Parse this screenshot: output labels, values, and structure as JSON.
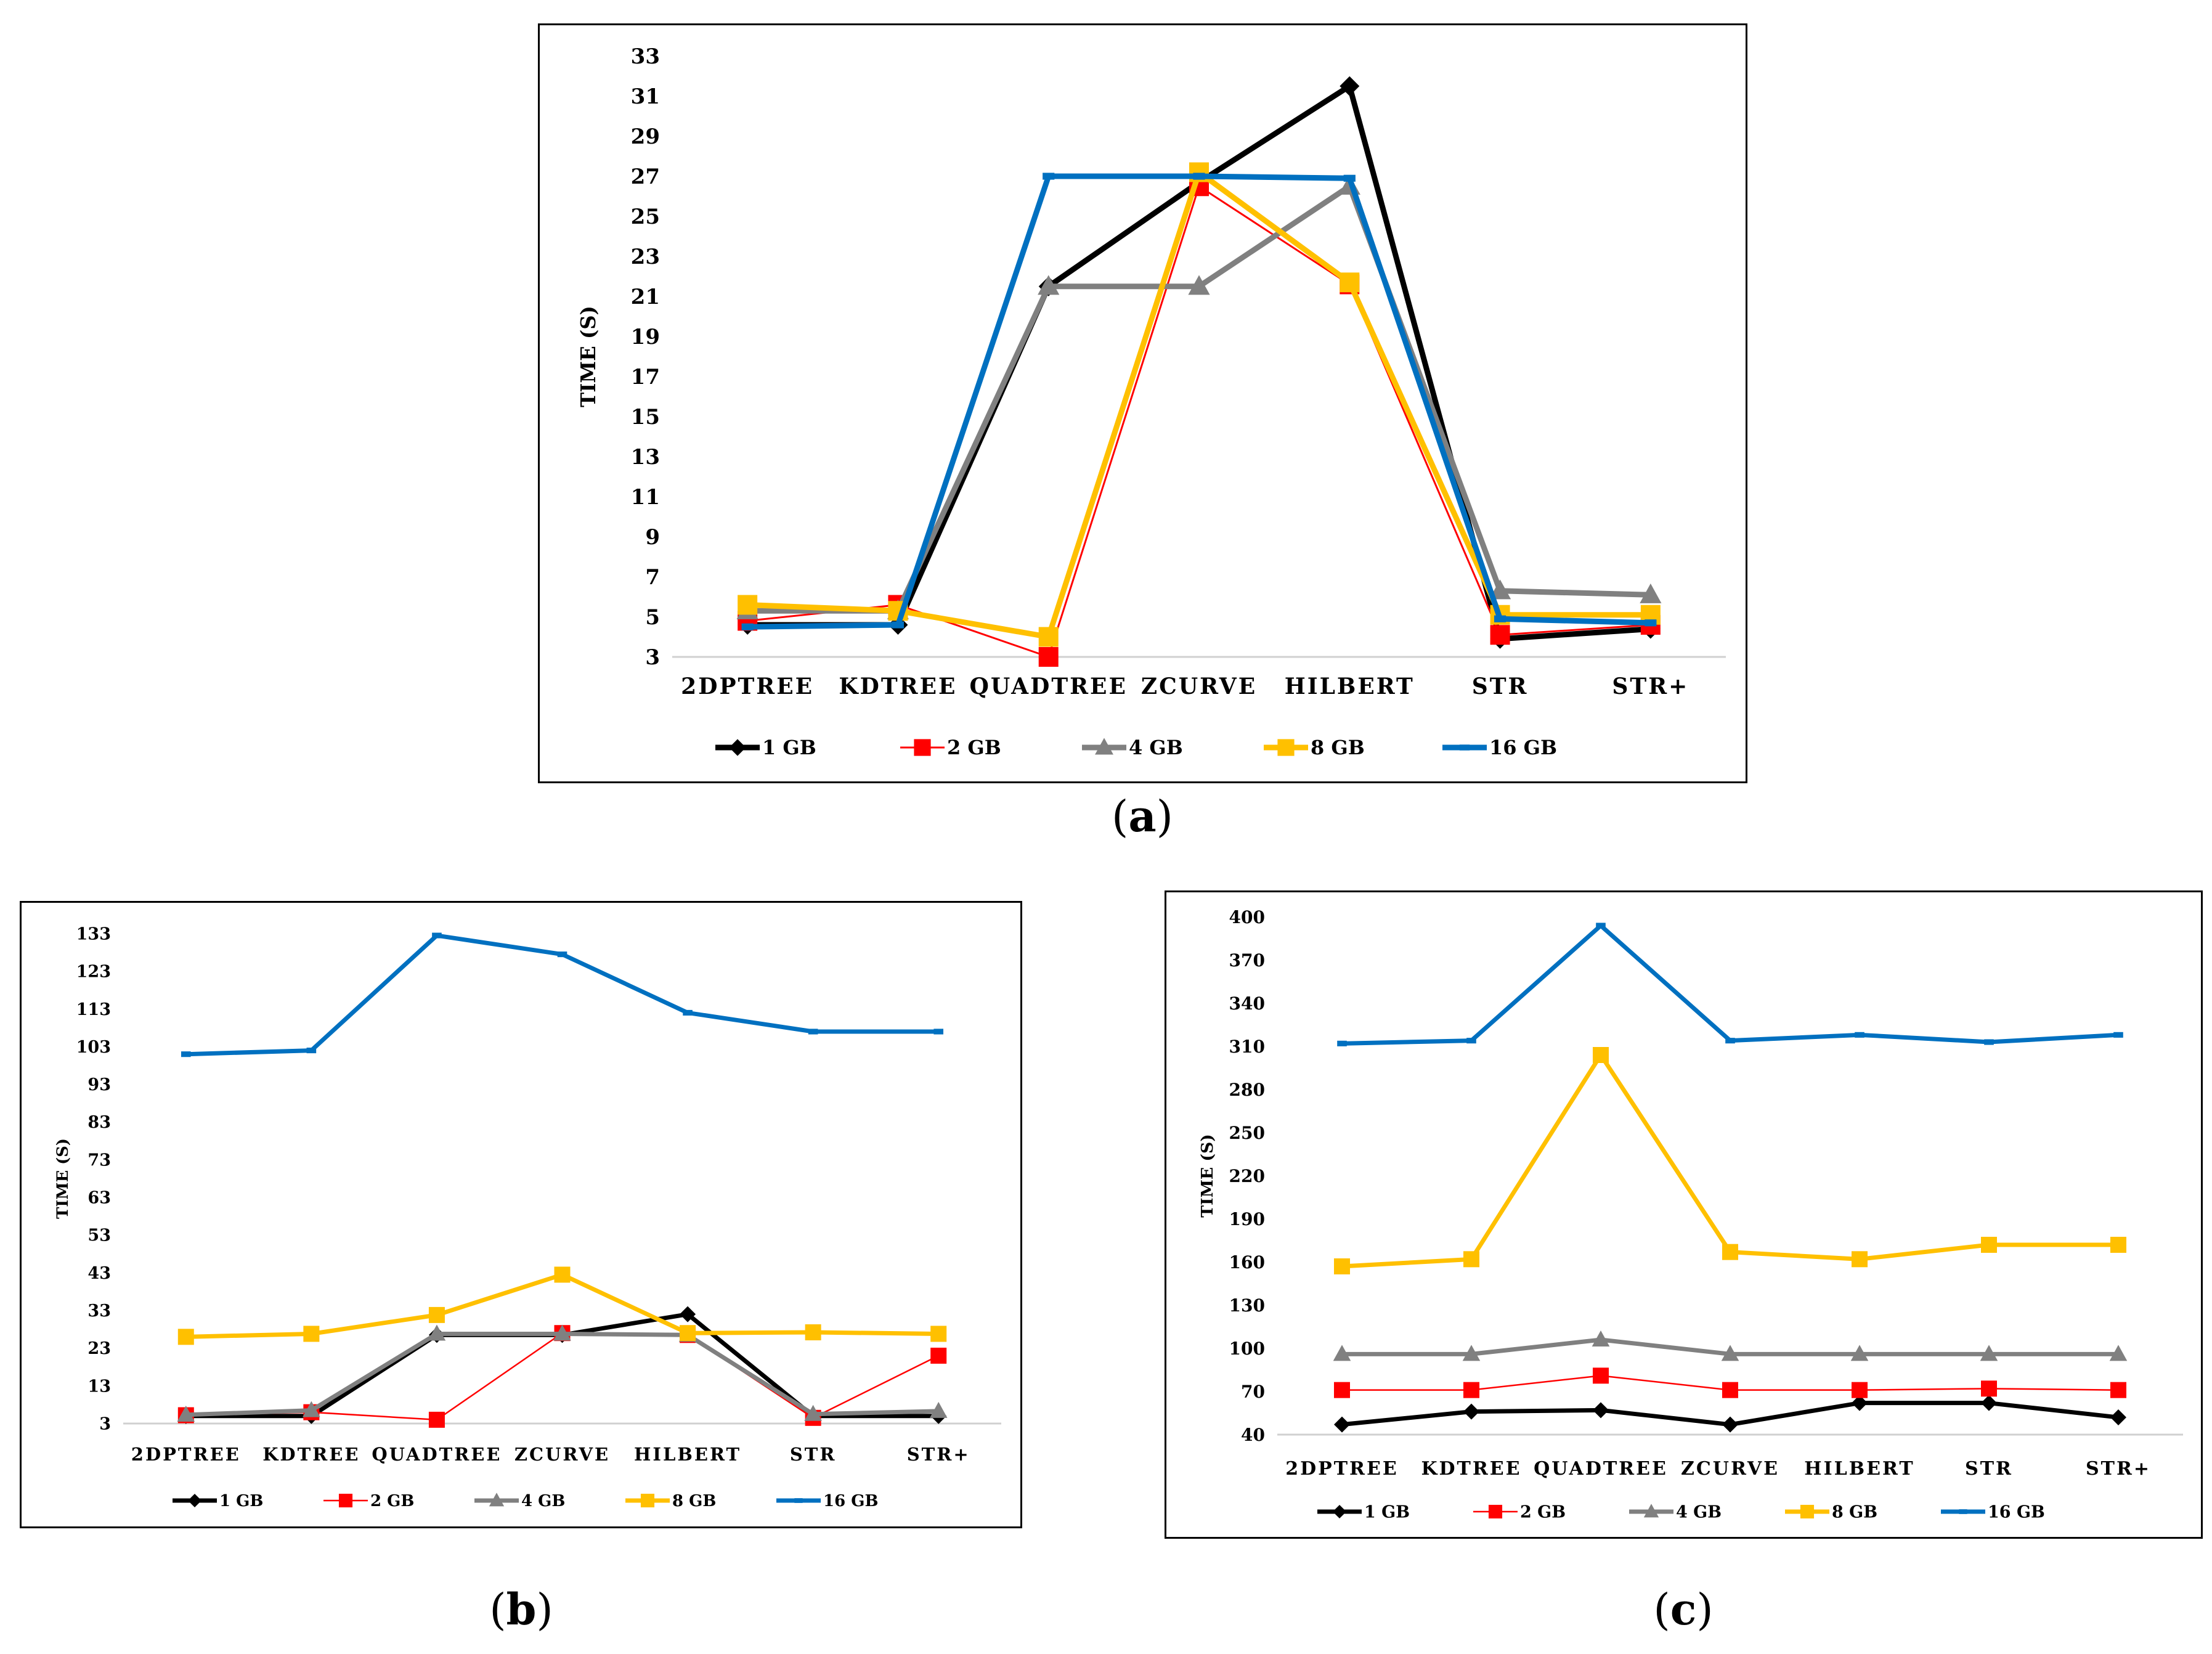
{
  "colors": {
    "1 GB": "#000000",
    "2 GB": "#ff0000",
    "4 GB": "#808080",
    "8 GB": "#ffc000",
    "16 GB": "#0070c0"
  },
  "captions": {
    "a": "a",
    "b": "b",
    "c": "c"
  },
  "chart_data": [
    {
      "id": "a",
      "type": "line",
      "title": "",
      "xlabel": "",
      "ylabel": "TIME (S)",
      "categories": [
        "2DPTREE",
        "KDTREE",
        "QUADTREE",
        "ZCURVE",
        "HILBERT",
        "STR",
        "STR+"
      ],
      "ylim": [
        3,
        33
      ],
      "yticks": [
        3,
        5,
        7,
        9,
        11,
        13,
        15,
        17,
        19,
        21,
        23,
        25,
        27,
        29,
        31,
        33
      ],
      "legend": "bottom",
      "series": [
        {
          "name": "1 GB",
          "marker": "diamond",
          "values": [
            4.6,
            4.6,
            21.5,
            26.7,
            31.5,
            3.9,
            4.4
          ]
        },
        {
          "name": "2 GB",
          "marker": "square",
          "values": [
            4.8,
            5.6,
            3.0,
            26.5,
            21.6,
            4.1,
            4.6
          ]
        },
        {
          "name": "4 GB",
          "marker": "triangle",
          "values": [
            5.3,
            5.3,
            21.5,
            21.5,
            26.5,
            6.3,
            6.1
          ]
        },
        {
          "name": "8 GB",
          "marker": "square",
          "values": [
            5.6,
            5.3,
            4.0,
            27.2,
            21.7,
            5.1,
            5.1
          ]
        },
        {
          "name": "16 GB",
          "marker": "dash",
          "values": [
            4.5,
            4.6,
            27.0,
            27.0,
            26.9,
            4.9,
            4.7
          ]
        }
      ]
    },
    {
      "id": "b",
      "type": "line",
      "title": "",
      "xlabel": "",
      "ylabel": "TIME (S)",
      "categories": [
        "2DPTREE",
        "KDTREE",
        "QUADTREE",
        "ZCURVE",
        "HILBERT",
        "STR",
        "STR+"
      ],
      "ylim": [
        3,
        133
      ],
      "yticks": [
        3,
        13,
        23,
        33,
        43,
        53,
        63,
        73,
        83,
        93,
        103,
        113,
        123,
        133
      ],
      "legend": "bottom",
      "series": [
        {
          "name": "1 GB",
          "marker": "diamond",
          "values": [
            5,
            5,
            26.5,
            26.5,
            32,
            5,
            5
          ]
        },
        {
          "name": "2 GB",
          "marker": "square",
          "values": [
            5.2,
            6,
            4,
            27,
            26.5,
            4.5,
            21
          ]
        },
        {
          "name": "4 GB",
          "marker": "triangle",
          "values": [
            5.3,
            6.5,
            26.8,
            26.8,
            26.5,
            5.5,
            6.3
          ]
        },
        {
          "name": "8 GB",
          "marker": "square",
          "values": [
            26,
            26.8,
            31.8,
            42.5,
            27,
            27.2,
            26.8
          ]
        },
        {
          "name": "16 GB",
          "marker": "dash",
          "values": [
            101,
            102,
            132.5,
            127.5,
            112,
            107,
            107
          ]
        }
      ]
    },
    {
      "id": "c",
      "type": "line",
      "title": "",
      "xlabel": "",
      "ylabel": "TIME (S)",
      "categories": [
        "2DPTREE",
        "KDTREE",
        "QUADTREE",
        "ZCURVE",
        "HILBERT",
        "STR",
        "STR+"
      ],
      "ylim": [
        40,
        400
      ],
      "yticks": [
        40,
        70,
        100,
        130,
        160,
        190,
        220,
        250,
        280,
        310,
        340,
        370,
        400
      ],
      "legend": "bottom",
      "series": [
        {
          "name": "1 GB",
          "marker": "diamond",
          "values": [
            47,
            56,
            57,
            47,
            62,
            62,
            52
          ]
        },
        {
          "name": "2 GB",
          "marker": "square",
          "values": [
            71,
            71,
            81,
            71,
            71,
            72,
            71
          ]
        },
        {
          "name": "4 GB",
          "marker": "triangle",
          "values": [
            96,
            96,
            106,
            96,
            96,
            96,
            96
          ]
        },
        {
          "name": "8 GB",
          "marker": "square",
          "values": [
            157,
            162,
            304,
            167,
            162,
            172,
            172
          ]
        },
        {
          "name": "16 GB",
          "marker": "dash",
          "values": [
            312,
            314,
            394,
            314,
            318,
            313,
            318
          ]
        }
      ]
    }
  ]
}
